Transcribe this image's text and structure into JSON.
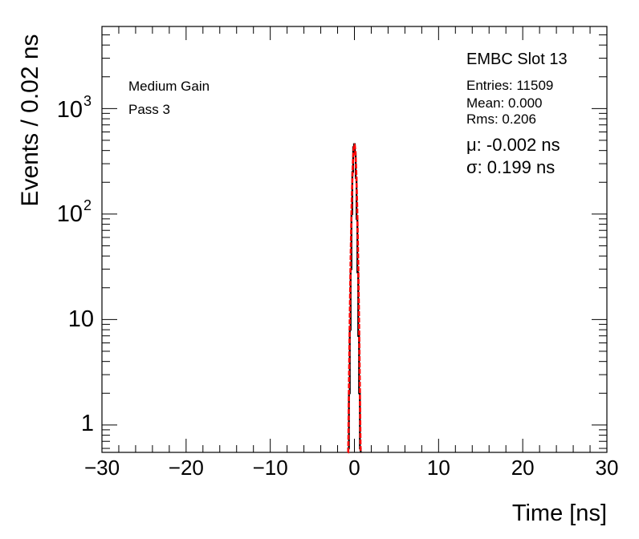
{
  "chart_data": {
    "type": "line",
    "xlabel": "Time [ns]",
    "ylabel": "Events / 0.02 ns",
    "xlim": [
      -30,
      30
    ],
    "ylim": [
      0.55,
      6000
    ],
    "yscale": "log",
    "grid": false,
    "x_ticks": [
      "−30",
      "−20",
      "−10",
      "0",
      "10",
      "20",
      "30"
    ],
    "x_tick_values": [
      -30,
      -20,
      -10,
      0,
      10,
      20,
      30
    ],
    "y_tick_values": [
      1,
      10,
      100,
      1000
    ],
    "y_ticks": {
      "t1": "1",
      "t10": "10",
      "t100": "10",
      "t100_exp": "2",
      "t1000": "10",
      "t1000_exp": "3"
    },
    "series": [
      {
        "style": "histogram",
        "color": "#000000",
        "x": [
          -0.7,
          -0.6,
          -0.5,
          -0.4,
          -0.3,
          -0.2,
          -0.1,
          0.0,
          0.1,
          0.2,
          0.3,
          0.4,
          0.5,
          0.6,
          0.7
        ],
        "y": [
          0.6,
          2,
          8,
          30,
          100,
          250,
          430,
          460,
          380,
          220,
          90,
          28,
          7,
          2,
          0.6
        ]
      },
      {
        "style": "gaussian-fit",
        "color": "#ff0000",
        "mean": -0.002,
        "sigma": 0.199,
        "peak": 455,
        "range": [
          -0.75,
          0.75
        ]
      }
    ],
    "annotations": {
      "gain": "Medium Gain",
      "pass": "Pass 3",
      "slot": "EMBC Slot 13",
      "entries": "Entries: 11509",
      "mean": "Mean: 0.000",
      "rms": "Rms: 0.206",
      "mu": "μ: -0.002 ns",
      "sigma": "σ: 0.199 ns"
    }
  }
}
